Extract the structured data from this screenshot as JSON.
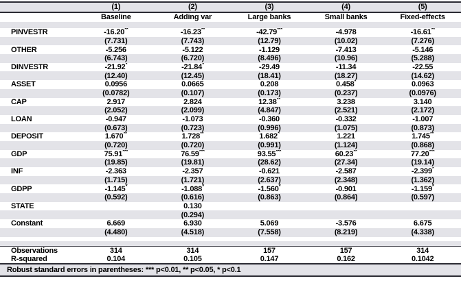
{
  "table": {
    "column_numbers": [
      "(1)",
      "(2)",
      "(3)",
      "(4)",
      "(5)"
    ],
    "column_names": [
      "Baseline",
      "Adding var",
      "Large banks",
      "Small banks",
      "Fixed-effects"
    ],
    "variables": [
      {
        "label": "PINVESTR",
        "coefficients": [
          "-16.20**",
          "-16.23**",
          "-42.79***",
          "-4.978",
          "-16.61**"
        ],
        "std_errors": [
          "(7.731)",
          "(7.743)",
          "(12.79)",
          "(10.02)",
          "(7.276)"
        ]
      },
      {
        "label": "OTHER",
        "coefficients": [
          "-5.256",
          "-5.122",
          "-1.129",
          "-7.413",
          "-5.146"
        ],
        "std_errors": [
          "(6.743)",
          "(6.720)",
          "(8.496)",
          "(10.96)",
          "(5.288)"
        ]
      },
      {
        "label": "DINVESTR",
        "coefficients": [
          "-21.92*",
          "-21.84*",
          "-29.49",
          "-11.34",
          "-22.55"
        ],
        "std_errors": [
          "(12.40)",
          "(12.45)",
          "(18.41)",
          "(18.27)",
          "(14.62)"
        ]
      },
      {
        "label": "ASSET",
        "coefficients": [
          "0.0956",
          "0.0665",
          "0.208",
          "0.458*",
          "0.0963"
        ],
        "std_errors": [
          "(0.0782)",
          "(0.107)",
          "(0.173)",
          "(0.237)",
          "(0.0976)"
        ]
      },
      {
        "label": "CAP",
        "coefficients": [
          "2.917",
          "2.824",
          "12.38**",
          "3.238",
          "3.140"
        ],
        "std_errors": [
          "(2.052)",
          "(2.099)",
          "(4.847)",
          "(2.521)",
          "(2.172)"
        ]
      },
      {
        "label": "LOAN",
        "coefficients": [
          "-0.947",
          "-1.073",
          "-0.360",
          "-0.332",
          "-1.007"
        ],
        "std_errors": [
          "(0.673)",
          "(0.723)",
          "(0.996)",
          "(1.075)",
          "(0.873)"
        ]
      },
      {
        "label": "DEPOSIT",
        "coefficients": [
          "1.670**",
          "1.728**",
          "1.682*",
          "1.221",
          "1.745**"
        ],
        "std_errors": [
          "(0.720)",
          "(0.720)",
          "(0.991)",
          "(1.124)",
          "(0.868)"
        ]
      },
      {
        "label": "GDP",
        "coefficients": [
          "75.91***",
          "76.59***",
          "93.55***",
          "60.23**",
          "77.20***"
        ],
        "std_errors": [
          "(19.85)",
          "(19.81)",
          "(28.62)",
          "(27.34)",
          "(19.14)"
        ]
      },
      {
        "label": "INF",
        "coefficients": [
          "-2.363",
          "-2.357",
          "-0.621",
          "-2.587",
          "-2.399*"
        ],
        "std_errors": [
          "(1.715)",
          "(1.721)",
          "(2.637)",
          "(2.348)",
          "(1.362)"
        ]
      },
      {
        "label": "GDPP",
        "coefficients": [
          "-1.145*",
          "-1.088*",
          "-1.560*",
          "-0.901",
          "-1.159*"
        ],
        "std_errors": [
          "(0.592)",
          "(0.616)",
          "(0.863)",
          "(0.864)",
          "(0.597)"
        ]
      },
      {
        "label": "STATE",
        "coefficients": [
          "",
          "0.130",
          "",
          "",
          ""
        ],
        "std_errors": [
          "",
          "(0.294)",
          "",
          "",
          ""
        ]
      },
      {
        "label": "Constant",
        "coefficients": [
          "6.669",
          "6.930",
          "5.069",
          "-3.576",
          "6.675"
        ],
        "std_errors": [
          "(4.480)",
          "(4.518)",
          "(7.558)",
          "(8.219)",
          "(4.338)"
        ]
      }
    ],
    "stats": [
      {
        "label": "Observations",
        "values": [
          "314",
          "314",
          "157",
          "157",
          "314"
        ]
      },
      {
        "label": "R-squared",
        "values": [
          "0.104",
          "0.105",
          "0.147",
          "0.162",
          "0.1042"
        ]
      }
    ],
    "note": "Robust standard errors in parentheses: *** p<0.01, ** p<0.05, * p<0.1"
  },
  "colors": {
    "row_shade": "#e3e3e8",
    "rule": "#2b2b33",
    "text": "#000000"
  }
}
